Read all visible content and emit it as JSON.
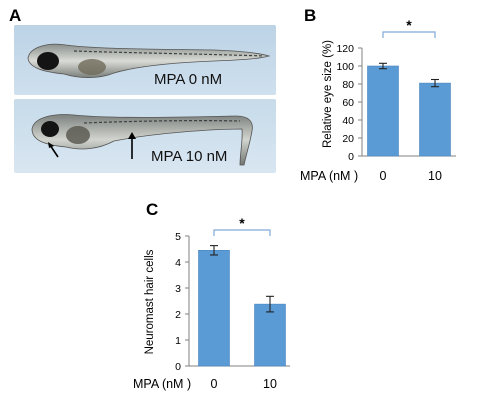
{
  "panel_labels": {
    "a": "A",
    "b": "B",
    "c": "C"
  },
  "photos": [
    {
      "label": "MPA 0 nM"
    },
    {
      "label": "MPA 10 nM"
    }
  ],
  "colors": {
    "bar": "#5b9bd5",
    "bar_edge": "#4a86c0",
    "axis": "#808080",
    "bracket": "#7fa9d6"
  },
  "chart_data": [
    {
      "type": "bar",
      "panel": "B",
      "categories": [
        "0",
        "10"
      ],
      "values": [
        100,
        81
      ],
      "errors": [
        3,
        4
      ],
      "xlabel": "MPA (nM )",
      "ylabel": "Relative eye size (%)",
      "ylim": [
        0,
        120
      ],
      "yticks": [
        "0",
        "20",
        "40",
        "60",
        "80",
        "100",
        "120"
      ],
      "significance": "*"
    },
    {
      "type": "bar",
      "panel": "C",
      "categories": [
        "0",
        "10"
      ],
      "values": [
        4.45,
        2.38
      ],
      "errors": [
        0.18,
        0.3
      ],
      "xlabel": "MPA (nM )",
      "ylabel": "Neuromast hair cells",
      "ylim": [
        0,
        5
      ],
      "yticks": [
        "0",
        "1",
        "2",
        "3",
        "4",
        "5"
      ],
      "significance": "*"
    }
  ]
}
